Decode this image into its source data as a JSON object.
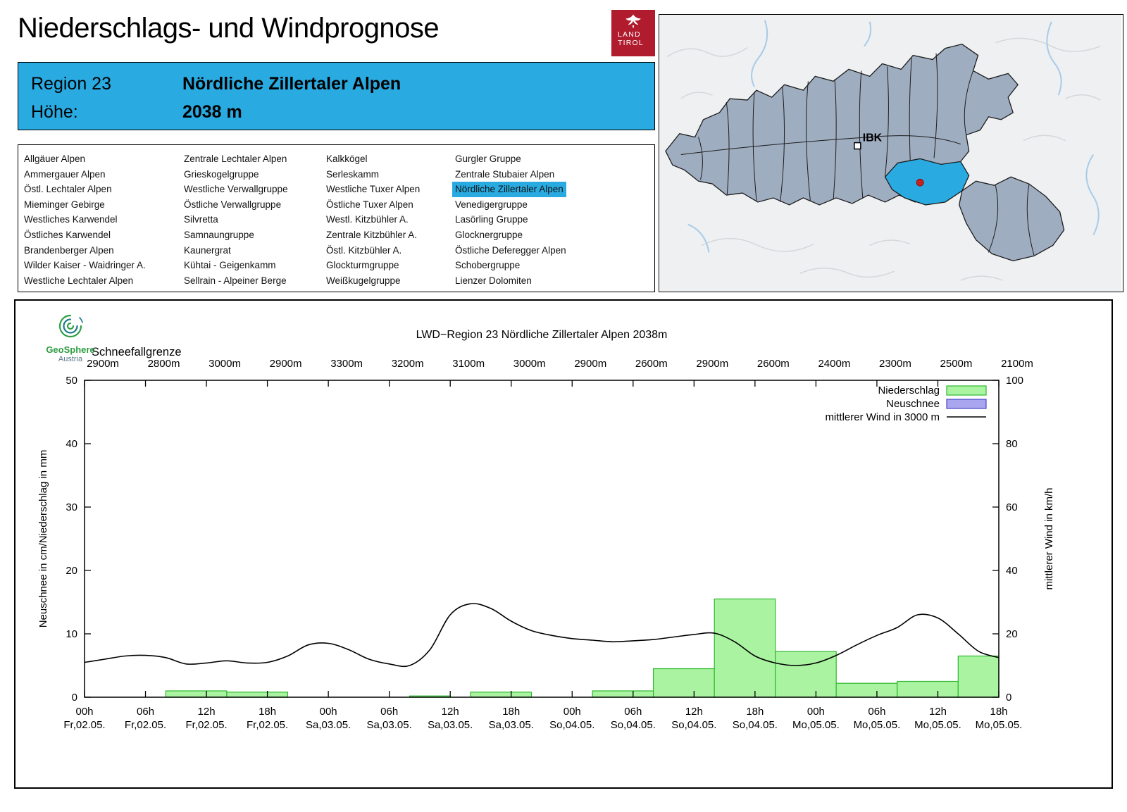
{
  "page_title": "Niederschlags- und Windprognose",
  "logo": {
    "line1": "LAND",
    "line2": "TIROL"
  },
  "header": {
    "region_label": "Region 23",
    "region_name": "Nördliche Zillertaler Alpen",
    "elevation_label": "Höhe:",
    "elevation_value": "2038 m"
  },
  "map": {
    "city_label": "IBK"
  },
  "region_list": {
    "highlighted": "Nördliche Zillertaler Alpen",
    "columns": [
      {
        "items": [
          "Allgäuer Alpen",
          "Ammergauer Alpen",
          "Östl. Lechtaler Alpen",
          "Mieminger Gebirge",
          "Westliches Karwendel",
          "Östliches Karwendel",
          "Brandenberger Alpen",
          "Wilder Kaiser - Waidringer A.",
          "Westliche Lechtaler Alpen"
        ]
      },
      {
        "items": [
          "Zentrale Lechtaler Alpen",
          "Grieskogelgruppe",
          "Westliche Verwallgruppe",
          "Östliche Verwallgruppe",
          "Silvretta",
          "Samnaungruppe",
          "Kaunergrat",
          "Kühtai - Geigenkamm",
          "Sellrain - Alpeiner Berge"
        ]
      },
      {
        "items": [
          "Kalkkögel",
          "Serleskamm",
          "Westliche Tuxer Alpen",
          "Östliche Tuxer Alpen",
          "Westl. Kitzbühler A.",
          "Zentrale Kitzbühler A.",
          "Östl. Kitzbühler A.",
          "Glockturmgruppe",
          "Weißkugelgruppe"
        ]
      },
      {
        "items": [
          "Gurgler Gruppe",
          "Zentrale Stubaier Alpen",
          "Nördliche Zillertaler Alpen",
          "Venedigergruppe",
          "Lasörling Gruppe",
          "Glocknergruppe",
          "Östliche Deferegger Alpen",
          "Schobergruppe",
          "Lienzer Dolomiten"
        ]
      }
    ]
  },
  "geosphere": {
    "name": "GeoSphere",
    "country": "Austria"
  },
  "colors": {
    "accent_blue": "#29abe2",
    "land_tirol_red": "#b01c2e",
    "map_region_fill": "#9fadc0",
    "map_highlight_blue": "#29abe2",
    "bar_fill": "#a9f3a1",
    "bar_stroke": "#2eb82e",
    "snow_fill": "#a9a5ee",
    "snow_stroke": "#4646c8",
    "wind_line": "#000000",
    "marker_red": "#cc2020",
    "geosphere_green": "#2f9e44"
  },
  "chart_data": {
    "type": "bar+line",
    "title": "LWD−Region 23 Nördliche Zillertaler Alpen 2038m",
    "snowline_label": "Schneefallgrenze",
    "snowline_values": [
      "2900m",
      "2800m",
      "3000m",
      "2900m",
      "3300m",
      "3200m",
      "3100m",
      "3000m",
      "2900m",
      "2600m",
      "2900m",
      "2600m",
      "2400m",
      "2300m",
      "2500m",
      "2100m"
    ],
    "ylabel_left": "Neuschnee in cm/Niederschlag in mm",
    "ylabel_right": "mittlerer Wind in km/h",
    "ylim_left": [
      0,
      50
    ],
    "ylim_right": [
      0,
      100
    ],
    "yticks_left": [
      0,
      10,
      20,
      30,
      40,
      50
    ],
    "yticks_right": [
      0,
      20,
      40,
      60,
      80,
      100
    ],
    "x_hours_range": [
      0,
      90
    ],
    "grid": false,
    "legend_position": "top-right",
    "xticks": [
      {
        "hour": 0,
        "time": "00h",
        "date": "Fr,02.05."
      },
      {
        "hour": 6,
        "time": "06h",
        "date": "Fr,02.05."
      },
      {
        "hour": 12,
        "time": "12h",
        "date": "Fr,02.05."
      },
      {
        "hour": 18,
        "time": "18h",
        "date": "Fr,02.05."
      },
      {
        "hour": 24,
        "time": "00h",
        "date": "Sa,03.05."
      },
      {
        "hour": 30,
        "time": "06h",
        "date": "Sa,03.05."
      },
      {
        "hour": 36,
        "time": "12h",
        "date": "Sa,03.05."
      },
      {
        "hour": 42,
        "time": "18h",
        "date": "Sa,03.05."
      },
      {
        "hour": 48,
        "time": "00h",
        "date": "So,04.05."
      },
      {
        "hour": 54,
        "time": "06h",
        "date": "So,04.05."
      },
      {
        "hour": 60,
        "time": "12h",
        "date": "So,04.05."
      },
      {
        "hour": 66,
        "time": "18h",
        "date": "So,04.05."
      },
      {
        "hour": 72,
        "time": "00h",
        "date": "Mo,05.05."
      },
      {
        "hour": 78,
        "time": "06h",
        "date": "Mo,05.05."
      },
      {
        "hour": 84,
        "time": "12h",
        "date": "Mo,05.05."
      },
      {
        "hour": 90,
        "time": "18h",
        "date": "Mo,05.05."
      }
    ],
    "legend": [
      {
        "label": "Niederschlag",
        "type": "box",
        "fill": "#a9f3a1",
        "stroke": "#2eb82e"
      },
      {
        "label": "Neuschnee",
        "type": "box",
        "fill": "#a9a5ee",
        "stroke": "#4646c8"
      },
      {
        "label": "mittlerer Wind in 3000 m",
        "type": "line",
        "stroke": "#000000"
      }
    ],
    "precipitation_bars_mm": [
      {
        "start_hour": 8,
        "end_hour": 14,
        "value": 1.0
      },
      {
        "start_hour": 14,
        "end_hour": 20,
        "value": 0.8
      },
      {
        "start_hour": 32,
        "end_hour": 36,
        "value": 0.2
      },
      {
        "start_hour": 38,
        "end_hour": 44,
        "value": 0.8
      },
      {
        "start_hour": 50,
        "end_hour": 56,
        "value": 1.0
      },
      {
        "start_hour": 56,
        "end_hour": 62,
        "value": 4.5
      },
      {
        "start_hour": 62,
        "end_hour": 68,
        "value": 15.5
      },
      {
        "start_hour": 68,
        "end_hour": 74,
        "value": 7.2
      },
      {
        "start_hour": 74,
        "end_hour": 80,
        "value": 2.2
      },
      {
        "start_hour": 80,
        "end_hour": 86,
        "value": 2.5
      },
      {
        "start_hour": 86,
        "end_hour": 90,
        "value": 6.5
      }
    ],
    "neuschnee_bars_cm": [],
    "wind_line_kmh": {
      "name": "mittlerer Wind in 3000 m",
      "hours": [
        0,
        2,
        4,
        6,
        8,
        10,
        12,
        14,
        16,
        18,
        20,
        22,
        24,
        26,
        28,
        30,
        32,
        34,
        36,
        38,
        40,
        42,
        44,
        46,
        48,
        50,
        52,
        54,
        56,
        58,
        60,
        62,
        64,
        66,
        68,
        70,
        72,
        74,
        76,
        78,
        80,
        82,
        84,
        86,
        88,
        90
      ],
      "values_kmh": [
        11,
        12,
        13,
        13.2,
        12.5,
        10.5,
        10.8,
        11.5,
        10.8,
        11,
        13,
        16.5,
        17,
        15,
        12,
        10.5,
        10,
        15,
        26,
        29.5,
        28,
        24,
        21,
        19.5,
        18.5,
        18,
        17.5,
        17.8,
        18.2,
        19,
        19.8,
        20.2,
        17.5,
        13,
        10.8,
        10,
        10.8,
        13.2,
        16.5,
        19.5,
        22,
        26,
        25,
        20,
        14.5,
        12.5
      ]
    }
  }
}
